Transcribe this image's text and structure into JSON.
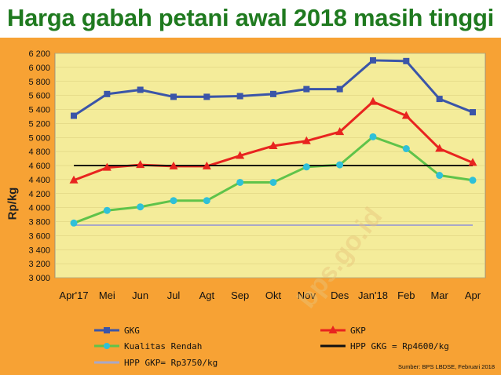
{
  "page": {
    "title": "Harga gabah petani awal 2018 masih tinggi",
    "source": "Sumber: BPS LBDSE, Februari 2018",
    "watermark": "bps.go.id",
    "colors": {
      "title": "#1f7a1f",
      "panel": "#f7a234",
      "plot": "#f4ec9a"
    }
  },
  "chart_data": {
    "type": "line",
    "ylabel": "Rp/kg",
    "xlabel": "",
    "ylim": [
      3000,
      6200
    ],
    "yticks": [
      3000,
      3200,
      3400,
      3600,
      3800,
      4000,
      4200,
      4400,
      4600,
      4800,
      5000,
      5200,
      5400,
      5600,
      5800,
      6000,
      6200
    ],
    "ytick_labels": [
      "3 000",
      "3 200",
      "3 400",
      "3 600",
      "3 800",
      "4 000",
      "4 200",
      "4 400",
      "4 600",
      "4 800",
      "5 000",
      "5 200",
      "5 400",
      "5 600",
      "5 800",
      "6 000",
      "6 200"
    ],
    "categories": [
      "Apr'17",
      "Mei",
      "Jun",
      "Jul",
      "Agt",
      "Sep",
      "Okt",
      "Nov",
      "Des",
      "Jan'18",
      "Feb",
      "Mar",
      "Apr"
    ],
    "grid": true,
    "legend_position": "bottom",
    "series": [
      {
        "name": "GKG",
        "color": "#3b55a8",
        "marker": "square",
        "values": [
          5310,
          5620,
          5680,
          5580,
          5580,
          5590,
          5620,
          5690,
          5690,
          6100,
          6090,
          5550,
          5360
        ]
      },
      {
        "name": "GKP",
        "color": "#e8241f",
        "marker": "triangle",
        "values": [
          4390,
          4570,
          4610,
          4590,
          4590,
          4740,
          4880,
          4950,
          5080,
          5510,
          5310,
          4840,
          4640
        ]
      },
      {
        "name": "Kualitas Rendah",
        "color": "#5fc34a",
        "marker": "circle",
        "values": [
          3780,
          3960,
          4010,
          4100,
          4100,
          4360,
          4360,
          4580,
          4610,
          5010,
          4840,
          4460,
          4390
        ]
      },
      {
        "name": "HPP GKG = Rp4600/kg",
        "color": "#111111",
        "marker": "none",
        "values": [
          4600,
          4600,
          4600,
          4600,
          4600,
          4600,
          4600,
          4600,
          4600,
          4600,
          4600,
          4600,
          4600
        ]
      },
      {
        "name": "HPP GKP= Rp3750/kg",
        "color": "#a8a8c8",
        "marker": "none",
        "values": [
          3750,
          3750,
          3750,
          3750,
          3750,
          3750,
          3750,
          3750,
          3750,
          3750,
          3750,
          3750,
          3750
        ]
      }
    ]
  }
}
